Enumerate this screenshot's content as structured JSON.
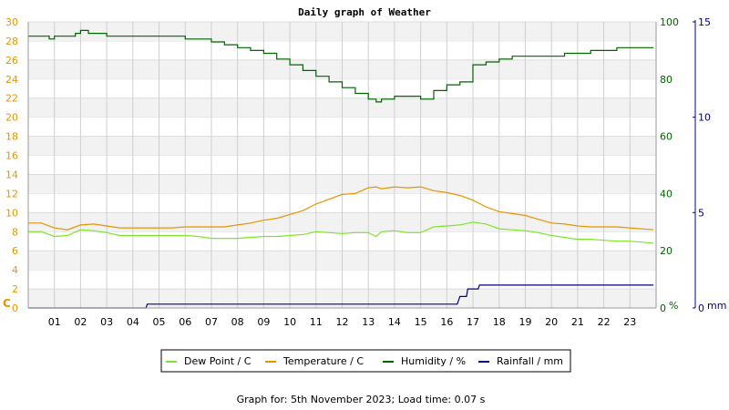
{
  "chart_data": {
    "type": "line",
    "title": "Daily graph of Weather",
    "footer": "Graph for: 5th November 2023; Load time: 0.07 s",
    "x_ticks": [
      "01",
      "02",
      "03",
      "04",
      "05",
      "06",
      "07",
      "08",
      "09",
      "10",
      "11",
      "12",
      "13",
      "14",
      "15",
      "16",
      "17",
      "18",
      "19",
      "20",
      "21",
      "22",
      "23"
    ],
    "xlim": [
      0,
      24
    ],
    "y_left": {
      "unit": "C",
      "ylim": [
        0,
        30
      ],
      "ticks": [
        "0",
        "2",
        "4",
        "6",
        "8",
        "10",
        "12",
        "14",
        "16",
        "18",
        "20",
        "22",
        "24",
        "26",
        "28",
        "30"
      ]
    },
    "y_humidity": {
      "unit": "%",
      "ylim": [
        0,
        100
      ],
      "ticks": [
        "0",
        "20",
        "40",
        "60",
        "80",
        "100"
      ]
    },
    "y_rain": {
      "unit": "mm",
      "ylim": [
        0,
        15
      ],
      "ticks": [
        "0",
        "5",
        "10",
        "15"
      ]
    },
    "grid": true,
    "legend_position": "bottom",
    "series": [
      {
        "name": "Dew Point / C",
        "axis": "left",
        "color": "#7fe52a",
        "x": [
          0,
          0.5,
          1,
          1.5,
          2,
          2.5,
          3,
          3.5,
          4,
          4.5,
          5,
          5.5,
          6,
          6.5,
          7,
          7.5,
          8,
          8.5,
          9,
          9.5,
          10,
          10.5,
          11,
          11.5,
          12,
          12.5,
          13,
          13.3,
          13.5,
          14,
          14.5,
          15,
          15.5,
          16,
          16.5,
          17,
          17.5,
          18,
          18.5,
          19,
          19.5,
          20,
          20.5,
          21,
          21.5,
          22,
          22.5,
          23,
          23.9
        ],
        "values": [
          8.0,
          8.0,
          7.5,
          7.6,
          8.2,
          8.1,
          7.9,
          7.6,
          7.6,
          7.6,
          7.6,
          7.6,
          7.6,
          7.5,
          7.3,
          7.3,
          7.3,
          7.4,
          7.5,
          7.5,
          7.6,
          7.7,
          8.0,
          7.9,
          7.8,
          7.9,
          7.9,
          7.5,
          8.0,
          8.1,
          7.9,
          7.9,
          8.5,
          8.6,
          8.7,
          9.0,
          8.8,
          8.3,
          8.2,
          8.1,
          7.9,
          7.6,
          7.4,
          7.2,
          7.2,
          7.1,
          7.0,
          7.0,
          6.8
        ]
      },
      {
        "name": "Temperature / C",
        "axis": "left",
        "color": "#e69500",
        "x": [
          0,
          0.5,
          1,
          1.5,
          2,
          2.5,
          3,
          3.5,
          4,
          4.5,
          5,
          5.5,
          6,
          6.5,
          7,
          7.5,
          8,
          8.5,
          9,
          9.5,
          10,
          10.5,
          11,
          11.5,
          12,
          12.5,
          13,
          13.3,
          13.5,
          14,
          14.5,
          15,
          15.5,
          16,
          16.5,
          17,
          17.5,
          18,
          18.5,
          19,
          19.5,
          20,
          20.5,
          21,
          21.5,
          22,
          22.5,
          23,
          23.9
        ],
        "values": [
          8.9,
          8.9,
          8.4,
          8.2,
          8.7,
          8.8,
          8.6,
          8.4,
          8.4,
          8.4,
          8.4,
          8.4,
          8.5,
          8.5,
          8.5,
          8.5,
          8.7,
          8.9,
          9.2,
          9.4,
          9.8,
          10.2,
          10.9,
          11.4,
          11.9,
          12.0,
          12.6,
          12.7,
          12.5,
          12.7,
          12.6,
          12.7,
          12.3,
          12.1,
          11.8,
          11.3,
          10.6,
          10.1,
          9.9,
          9.7,
          9.3,
          8.9,
          8.8,
          8.6,
          8.5,
          8.5,
          8.5,
          8.4,
          8.2
        ]
      },
      {
        "name": "Humidity / %",
        "axis": "humidity",
        "color": "#006400",
        "x": [
          0,
          0.8,
          1,
          1.8,
          2,
          2.3,
          2.6,
          3,
          3.5,
          4,
          4.5,
          5,
          5.5,
          6,
          6.5,
          7,
          7.5,
          8,
          8.5,
          9,
          9.5,
          10,
          10.5,
          11,
          11.5,
          12,
          12.5,
          13,
          13.3,
          13.5,
          14,
          14.5,
          15,
          15.3,
          15.5,
          16,
          16.5,
          17,
          17.5,
          18,
          18.5,
          19,
          19.5,
          20,
          20.5,
          21,
          21.5,
          22,
          22.5,
          23,
          23.9
        ],
        "values": [
          95,
          94,
          95,
          96,
          97,
          96,
          96,
          95,
          95,
          95,
          95,
          95,
          95,
          94,
          94,
          93,
          92,
          91,
          90,
          89,
          87,
          85,
          83,
          81,
          79,
          77,
          75,
          73,
          72,
          73,
          74,
          74,
          73,
          73,
          76,
          78,
          79,
          85,
          86,
          87,
          88,
          88,
          88,
          88,
          89,
          89,
          90,
          90,
          91,
          91,
          91
        ]
      },
      {
        "name": "Rainfall / mm",
        "axis": "rain",
        "color": "#00008b",
        "x": [
          0,
          4.5,
          4.55,
          16.4,
          16.5,
          16.75,
          16.8,
          17.2,
          17.25,
          23.9
        ],
        "values": [
          0,
          0,
          0.2,
          0.2,
          0.6,
          0.6,
          1.0,
          1.0,
          1.2,
          1.2
        ]
      }
    ]
  }
}
